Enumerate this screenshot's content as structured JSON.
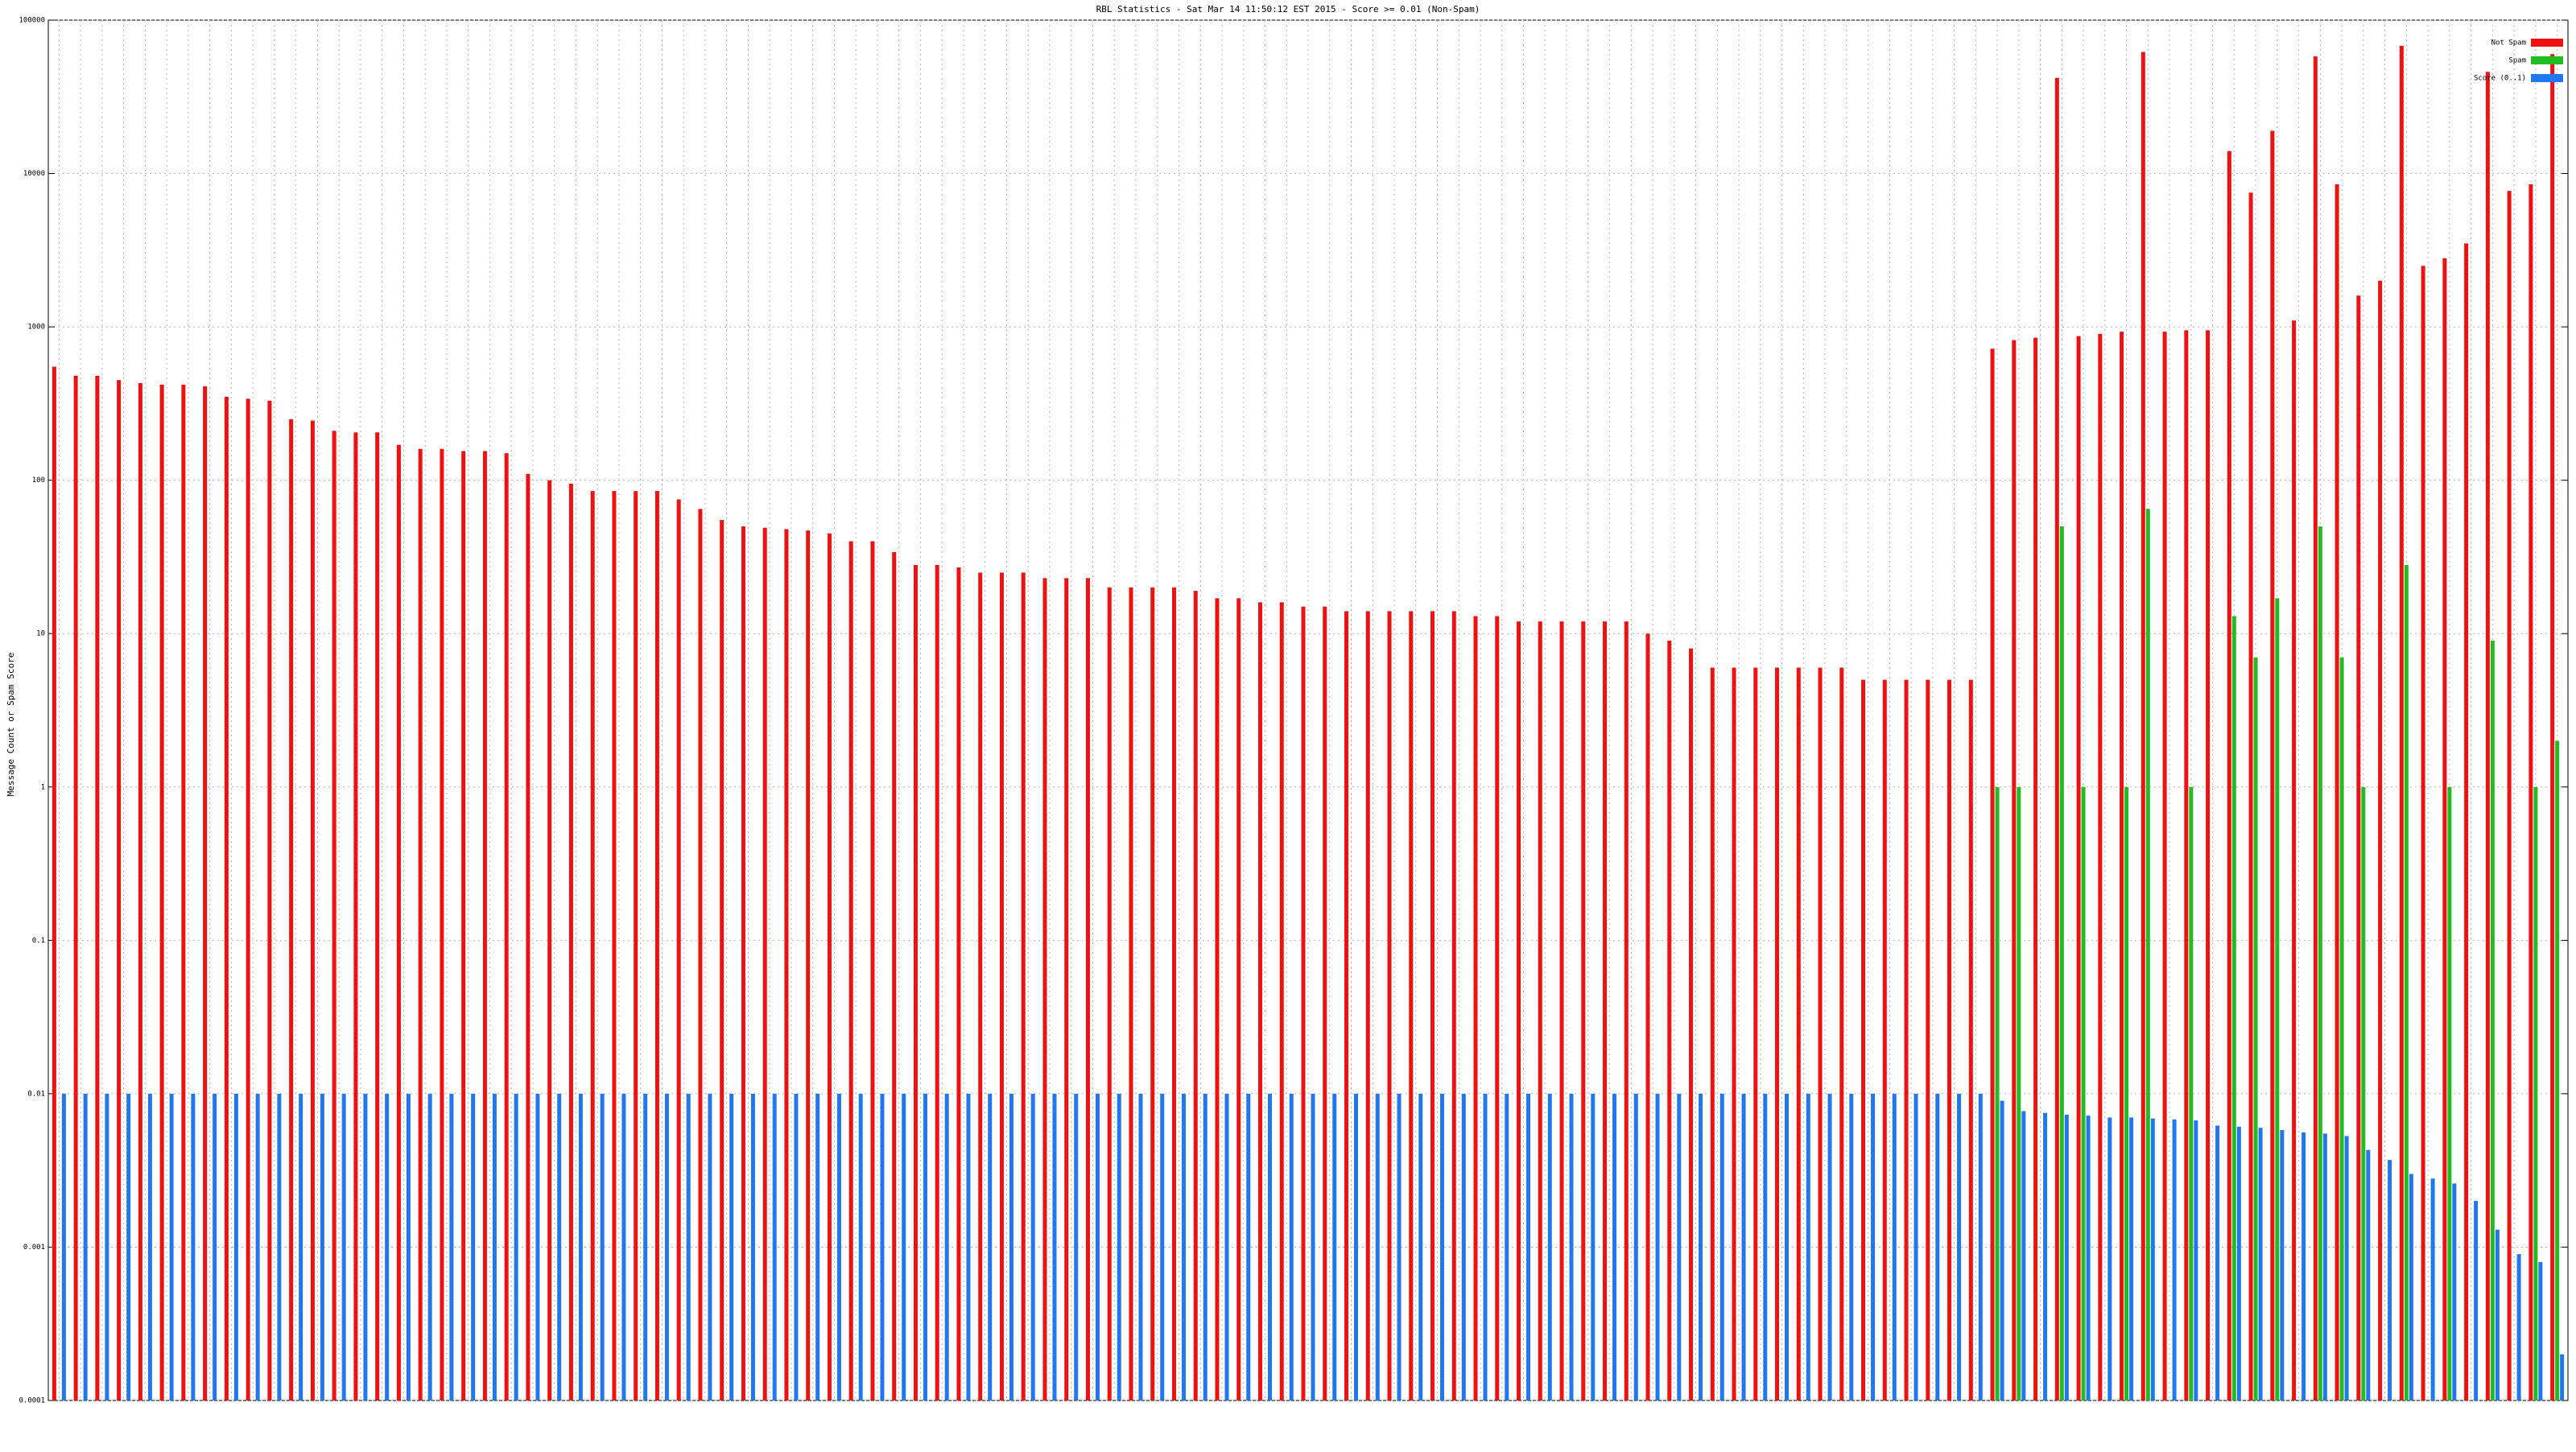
{
  "chart_data": {
    "type": "bar",
    "log_scale": true,
    "grid": true,
    "legend": "top-right",
    "title": "RBL Statistics - Sat Mar 14 11:50:12 EST 2015 - Score >= 0.01 (Non-Spam)",
    "y_label": "Message Count or Spam Score",
    "ylim": [
      0.0001,
      100000
    ],
    "yticks": [
      0.0001,
      0.001,
      0.01,
      0.1,
      1,
      10,
      100,
      1000,
      10000,
      100000
    ],
    "categories": [
      null,
      null,
      null,
      null,
      null,
      null,
      null,
      null,
      null,
      null,
      null,
      null,
      null,
      null,
      null,
      null,
      null,
      null,
      null,
      null,
      null,
      null,
      null,
      null,
      null,
      null,
      null,
      null,
      null,
      null,
      null,
      null,
      null,
      null,
      null,
      null,
      null,
      null,
      null,
      null,
      null,
      null,
      null,
      null,
      null,
      null,
      null,
      null,
      null,
      null,
      null,
      null,
      null,
      null,
      null,
      null,
      null,
      null,
      null,
      null,
      null,
      null,
      null,
      null,
      null,
      null,
      null,
      null,
      null,
      null,
      null,
      null,
      null,
      null,
      null,
      null,
      null,
      null,
      null,
      null,
      null,
      null,
      null,
      null,
      null,
      null,
      null,
      null,
      null,
      null,
      null,
      null,
      null,
      null,
      null,
      null,
      null,
      null,
      null,
      null,
      null,
      null,
      null,
      null,
      null,
      null,
      null,
      null,
      null,
      null,
      null,
      null,
      null,
      null,
      null,
      null,
      null
    ],
    "series": [
      {
        "name": "Not Spam",
        "color": "#ee1111",
        "values": [
          550,
          480,
          480,
          450,
          430,
          420,
          420,
          410,
          350,
          340,
          330,
          250,
          245,
          210,
          205,
          205,
          170,
          160,
          160,
          155,
          155,
          150,
          110,
          100,
          95,
          85,
          85,
          85,
          85,
          75,
          65,
          55,
          50,
          49,
          48,
          47,
          45,
          40,
          40,
          34,
          28,
          28,
          27,
          25,
          25,
          25,
          23,
          23,
          23,
          20,
          20,
          20,
          20,
          19,
          17,
          17,
          16,
          16,
          15,
          15,
          14,
          14,
          14,
          14,
          14,
          14,
          13,
          13,
          12,
          12,
          12,
          12,
          12,
          12,
          10,
          9,
          8,
          6,
          6,
          6,
          6,
          6,
          6,
          6,
          5,
          5,
          5,
          5,
          5,
          5,
          720,
          820,
          850,
          42000,
          870,
          900,
          930,
          62000,
          930,
          950,
          950,
          14000,
          7500,
          19000,
          1100,
          58000,
          8500,
          1600,
          2000,
          68000,
          2500,
          2800,
          3500,
          46000,
          7700,
          8500,
          60000
        ]
      },
      {
        "name": "Spam",
        "color": "#22bb22",
        "values": [
          null,
          null,
          null,
          null,
          null,
          null,
          null,
          null,
          null,
          null,
          null,
          null,
          null,
          null,
          null,
          null,
          null,
          null,
          null,
          null,
          null,
          null,
          null,
          null,
          null,
          null,
          null,
          null,
          null,
          null,
          null,
          null,
          null,
          null,
          null,
          null,
          null,
          null,
          null,
          null,
          null,
          null,
          null,
          null,
          null,
          null,
          null,
          null,
          null,
          null,
          null,
          null,
          null,
          null,
          null,
          null,
          null,
          null,
          null,
          null,
          null,
          null,
          null,
          null,
          null,
          null,
          null,
          null,
          null,
          null,
          null,
          null,
          null,
          null,
          null,
          null,
          null,
          null,
          null,
          null,
          null,
          null,
          null,
          null,
          null,
          null,
          null,
          null,
          null,
          null,
          1,
          1,
          null,
          50,
          1,
          null,
          1,
          65,
          null,
          1,
          null,
          13,
          7,
          17,
          null,
          50,
          7,
          1,
          null,
          28,
          null,
          1,
          null,
          9,
          null,
          1,
          2
        ]
      },
      {
        "name": "Score (0..1)",
        "color": "#2277ee",
        "values": [
          0.01,
          0.01,
          0.01,
          0.01,
          0.01,
          0.01,
          0.01,
          0.01,
          0.01,
          0.01,
          0.01,
          0.01,
          0.01,
          0.01,
          0.01,
          0.01,
          0.01,
          0.01,
          0.01,
          0.01,
          0.01,
          0.01,
          0.01,
          0.01,
          0.01,
          0.01,
          0.01,
          0.01,
          0.01,
          0.01,
          0.01,
          0.01,
          0.01,
          0.01,
          0.01,
          0.01,
          0.01,
          0.01,
          0.01,
          0.01,
          0.01,
          0.01,
          0.01,
          0.01,
          0.01,
          0.01,
          0.01,
          0.01,
          0.01,
          0.01,
          0.01,
          0.01,
          0.01,
          0.01,
          0.01,
          0.01,
          0.01,
          0.01,
          0.01,
          0.01,
          0.01,
          0.01,
          0.01,
          0.01,
          0.01,
          0.01,
          0.01,
          0.01,
          0.01,
          0.01,
          0.01,
          0.01,
          0.01,
          0.01,
          0.01,
          0.01,
          0.01,
          0.01,
          0.01,
          0.01,
          0.01,
          0.01,
          0.01,
          0.01,
          0.01,
          0.01,
          0.01,
          0.01,
          0.01,
          0.01,
          0.009,
          0.0077,
          0.0075,
          0.0073,
          0.0072,
          0.007,
          0.007,
          0.0069,
          0.0068,
          0.0067,
          0.0062,
          0.0061,
          0.006,
          0.0058,
          0.0056,
          0.0055,
          0.0053,
          0.0043,
          0.0037,
          0.003,
          0.0028,
          0.0026,
          0.002,
          0.0013,
          0.0009,
          0.0008,
          0.0002
        ]
      }
    ]
  }
}
